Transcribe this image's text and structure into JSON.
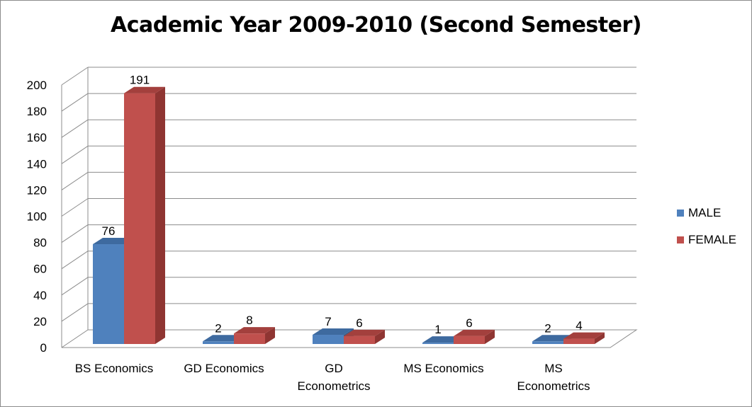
{
  "chart_data": {
    "type": "bar",
    "title": "Academic Year 2009-2010 (Second Semester)",
    "categories": [
      [
        "BS Economics"
      ],
      [
        "GD Economics"
      ],
      [
        "GD",
        "Econometrics"
      ],
      [
        "MS Economics"
      ],
      [
        "MS",
        "Econometrics"
      ]
    ],
    "series": [
      {
        "name": "MALE",
        "values": [
          76,
          2,
          7,
          1,
          2
        ],
        "color": "#4f81bd",
        "top_color": "#3e6a9f",
        "side_color": "#385d8a"
      },
      {
        "name": "FEMALE",
        "values": [
          191,
          8,
          6,
          6,
          4
        ],
        "color": "#c0504d",
        "top_color": "#a3403d",
        "side_color": "#8f3532"
      }
    ],
    "y_ticks": [
      "0",
      "20",
      "40",
      "60",
      "80",
      "100",
      "120",
      "140",
      "160",
      "180",
      "200"
    ],
    "ylim": [
      0,
      200
    ],
    "grid": true,
    "legend_position": "right",
    "xlabel": "",
    "ylabel": ""
  }
}
